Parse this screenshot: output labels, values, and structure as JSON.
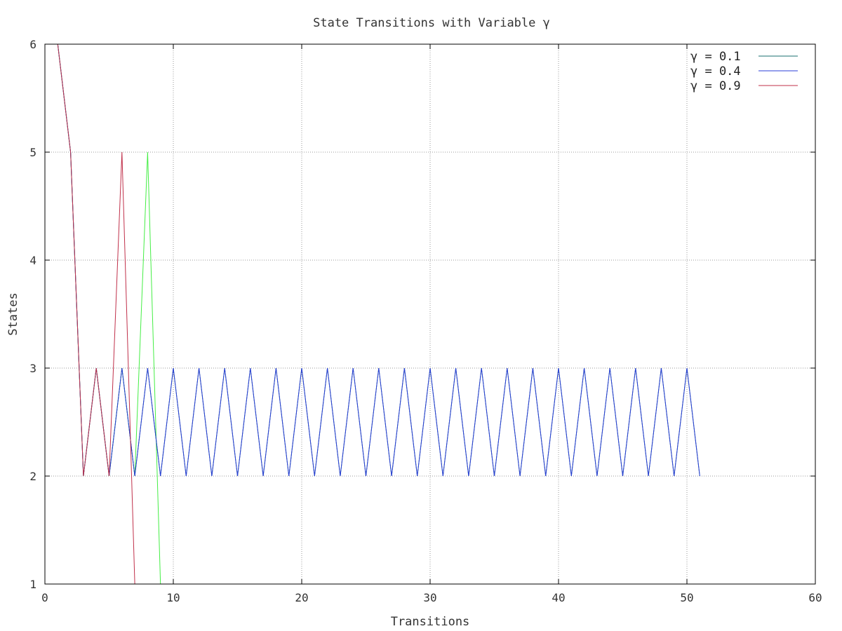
{
  "chart_data": {
    "type": "line",
    "title": "State Transitions with Variable γ",
    "xlabel": "Transitions",
    "ylabel": "States",
    "xlim": [
      0,
      60
    ],
    "ylim": [
      1,
      6
    ],
    "xticks": [
      0,
      10,
      20,
      30,
      40,
      50,
      60
    ],
    "yticks": [
      1,
      2,
      3,
      4,
      5,
      6
    ],
    "grid": true,
    "legend_position": "top-right",
    "series": [
      {
        "name": "γ = 0.1",
        "color": "#1a6f6f",
        "x": [
          1,
          2,
          3,
          4,
          5,
          6,
          7,
          8,
          9,
          10,
          11,
          12,
          13,
          14,
          15,
          16,
          17,
          18,
          19,
          20,
          21,
          22,
          23,
          24,
          25,
          26,
          27,
          28,
          29,
          30,
          31,
          32,
          33,
          34,
          35,
          36,
          37,
          38,
          39,
          40,
          41,
          42,
          43,
          44,
          45,
          46,
          47,
          48,
          49,
          50,
          51
        ],
        "y": [
          6,
          5,
          2,
          3,
          2,
          3,
          2,
          3,
          2,
          3,
          2,
          3,
          2,
          3,
          2,
          3,
          2,
          3,
          2,
          3,
          2,
          3,
          2,
          3,
          2,
          3,
          2,
          3,
          2,
          3,
          2,
          3,
          2,
          3,
          2,
          3,
          2,
          3,
          2,
          3,
          2,
          3,
          2,
          3,
          2,
          3,
          2,
          3,
          2,
          3,
          2
        ]
      },
      {
        "name": "γ = 0.4",
        "color": "#2b3fd8",
        "x": [
          1,
          2,
          3,
          4,
          5,
          6,
          7,
          8,
          9,
          10,
          11,
          12,
          13,
          14,
          15,
          16,
          17,
          18,
          19,
          20,
          21,
          22,
          23,
          24,
          25,
          26,
          27,
          28,
          29,
          30,
          31,
          32,
          33,
          34,
          35,
          36,
          37,
          38,
          39,
          40,
          41,
          42,
          43,
          44,
          45,
          46,
          47,
          48,
          49,
          50,
          51
        ],
        "y": [
          6,
          5,
          2,
          3,
          2,
          3,
          2,
          3,
          2,
          3,
          2,
          3,
          2,
          3,
          2,
          3,
          2,
          3,
          2,
          3,
          2,
          3,
          2,
          3,
          2,
          3,
          2,
          3,
          2,
          3,
          2,
          3,
          2,
          3,
          2,
          3,
          2,
          3,
          2,
          3,
          2,
          3,
          2,
          3,
          2,
          3,
          2,
          3,
          2,
          3,
          2
        ]
      },
      {
        "name": "γ = 0.9",
        "color": "#c0304a",
        "x": [
          1,
          2,
          3,
          4,
          5,
          6,
          7
        ],
        "y": [
          6,
          5,
          2,
          3,
          2,
          5,
          1
        ]
      },
      {
        "name": "",
        "color": "#44ee44",
        "x": [
          1,
          2,
          3,
          4,
          5,
          6,
          7,
          8,
          9,
          51
        ],
        "y": [
          6,
          5,
          2,
          3,
          2,
          3,
          2,
          5,
          1,
          1
        ]
      }
    ]
  }
}
